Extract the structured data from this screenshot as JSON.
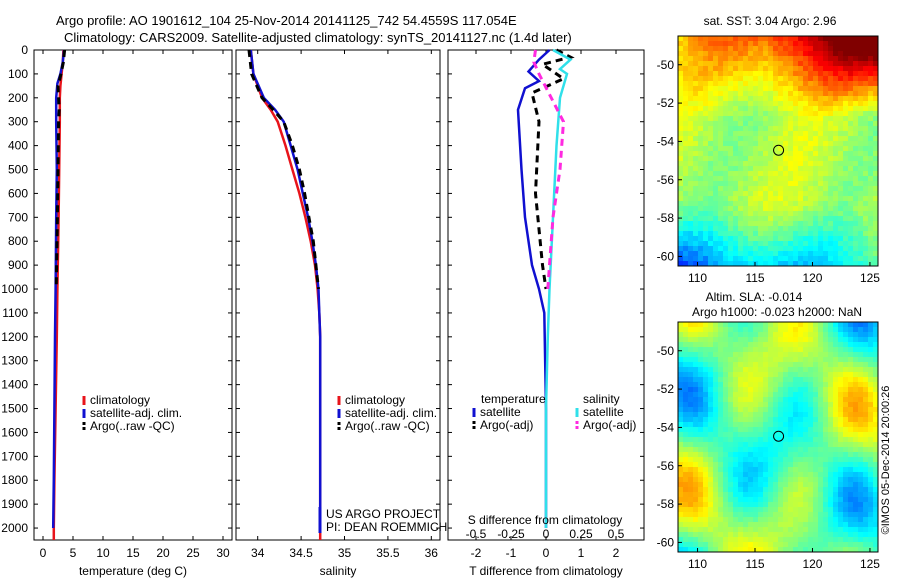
{
  "header": {
    "line1": "Argo profile: AO 1901612_104 25-Nov-2014 20141125_742 54.4559S 117.054E",
    "line2": "Climatology: CARS2009. Satellite-adjusted climatology: synTS_20141127.nc (1.4d later)"
  },
  "colors": {
    "climatology": "#e8141b",
    "satellite": "#1010d0",
    "argo": "#000000",
    "sat_salinity": "#30e0ea",
    "argo_salinity": "#ff2ae0"
  },
  "depth_axis": {
    "range": [
      0,
      2050
    ],
    "ticks": [
      0,
      100,
      200,
      300,
      400,
      500,
      600,
      700,
      800,
      900,
      1000,
      1100,
      1200,
      1300,
      1400,
      1500,
      1600,
      1700,
      1800,
      1900,
      2000
    ]
  },
  "chart_data": [
    {
      "type": "line",
      "id": "temperature",
      "xlabel": "temperature (deg C)",
      "xlim": [
        -1.5,
        31.5
      ],
      "xticks": [
        0,
        5,
        10,
        15,
        20,
        25,
        30
      ],
      "legend": [
        "climatology",
        "satellite-adj. clim.",
        "Argo(..raw -QC)"
      ],
      "legend_location": "lower-right",
      "series": [
        {
          "name": "climatology",
          "style": "solid",
          "points": [
            [
              3.4,
              0
            ],
            [
              3.3,
              50
            ],
            [
              3.1,
              100
            ],
            [
              2.9,
              150
            ],
            [
              2.8,
              200
            ],
            [
              2.8,
              300
            ],
            [
              2.7,
              500
            ],
            [
              2.6,
              700
            ],
            [
              2.4,
              1000
            ],
            [
              2.3,
              1200
            ],
            [
              2.1,
              1500
            ],
            [
              1.9,
              1800
            ],
            [
              1.8,
              2000
            ],
            [
              1.8,
              2050
            ]
          ]
        },
        {
          "name": "satellite-adj. clim.",
          "style": "solid",
          "points": [
            [
              3.5,
              0
            ],
            [
              3.3,
              50
            ],
            [
              2.9,
              100
            ],
            [
              2.4,
              140
            ],
            [
              2.2,
              200
            ],
            [
              2.2,
              250
            ],
            [
              2.2,
              300
            ],
            [
              2.3,
              500
            ],
            [
              2.2,
              700
            ],
            [
              2.1,
              1000
            ],
            [
              2.0,
              1200
            ],
            [
              1.9,
              1500
            ],
            [
              1.8,
              1800
            ],
            [
              1.7,
              2000
            ]
          ]
        },
        {
          "name": "Argo(..raw -QC)",
          "style": "dashed",
          "points": [
            [
              3.6,
              0
            ],
            [
              3.4,
              50
            ],
            [
              3.0,
              100
            ],
            [
              2.5,
              150
            ],
            [
              2.6,
              200
            ],
            [
              2.7,
              250
            ],
            [
              2.6,
              300
            ],
            [
              2.5,
              500
            ],
            [
              2.4,
              700
            ],
            [
              2.2,
              1000
            ]
          ]
        }
      ]
    },
    {
      "type": "line",
      "id": "salinity",
      "xlabel": "salinity",
      "xlim": [
        33.75,
        36.1
      ],
      "xticks": [
        34,
        34.5,
        35,
        35.5,
        36
      ],
      "xticklabels": [
        "34",
        "34.5",
        "35",
        "35.5",
        "36"
      ],
      "legend": [
        "climatology",
        "satellite-adj. clim.",
        "Argo(..raw -QC)"
      ],
      "legend_location": "lower-right",
      "annotation": [
        "US ARGO PROJECT",
        "PI: DEAN ROEMMICH"
      ],
      "series": [
        {
          "name": "climatology",
          "style": "solid",
          "points": [
            [
              33.92,
              0
            ],
            [
              33.95,
              100
            ],
            [
              34.05,
              200
            ],
            [
              34.15,
              250
            ],
            [
              34.23,
              300
            ],
            [
              34.32,
              400
            ],
            [
              34.4,
              500
            ],
            [
              34.48,
              600
            ],
            [
              34.55,
              700
            ],
            [
              34.61,
              800
            ],
            [
              34.66,
              900
            ],
            [
              34.69,
              1000
            ],
            [
              34.71,
              1100
            ],
            [
              34.72,
              1200
            ],
            [
              34.72,
              1500
            ],
            [
              34.72,
              1800
            ],
            [
              34.72,
              2050
            ]
          ]
        },
        {
          "name": "satellite-adj. clim.",
          "style": "solid",
          "points": [
            [
              33.92,
              0
            ],
            [
              33.95,
              100
            ],
            [
              34.07,
              200
            ],
            [
              34.2,
              250
            ],
            [
              34.3,
              300
            ],
            [
              34.38,
              400
            ],
            [
              34.46,
              500
            ],
            [
              34.52,
              600
            ],
            [
              34.58,
              700
            ],
            [
              34.63,
              800
            ],
            [
              34.67,
              900
            ],
            [
              34.7,
              1000
            ],
            [
              34.71,
              1100
            ],
            [
              34.72,
              1200
            ],
            [
              34.72,
              1500
            ],
            [
              34.72,
              1800
            ],
            [
              34.72,
              1950
            ]
          ]
        },
        {
          "name": "Argo(..raw -QC)",
          "style": "dashed",
          "points": [
            [
              33.9,
              0
            ],
            [
              33.93,
              100
            ],
            [
              34.05,
              200
            ],
            [
              34.18,
              250
            ],
            [
              34.3,
              300
            ],
            [
              34.4,
              400
            ],
            [
              34.48,
              500
            ],
            [
              34.54,
              600
            ],
            [
              34.59,
              700
            ],
            [
              34.64,
              800
            ],
            [
              34.67,
              900
            ],
            [
              34.7,
              1000
            ]
          ]
        }
      ]
    },
    {
      "type": "line",
      "id": "difference",
      "xlabel": "T difference from climatology",
      "x2label": "S difference from climatology",
      "xlim": [
        -2.8,
        2.8
      ],
      "xticks": [
        -2,
        -1,
        0,
        1,
        2
      ],
      "xticklabels": [
        "-2",
        "-1",
        "0",
        "1",
        "2"
      ],
      "x2ticks": [
        -2,
        -1,
        0,
        1,
        2
      ],
      "x2ticklabels": [
        "-0.5",
        "-0.25",
        "0",
        "0.25",
        "0.5"
      ],
      "legend_groups": [
        {
          "title": "temperature",
          "items": [
            "satellite",
            "Argo(-adj)"
          ]
        },
        {
          "title": "salinity",
          "items": [
            "satellite",
            "Argo(-adj)"
          ]
        }
      ],
      "series": [
        {
          "name": "temperature satellite",
          "style": "solid",
          "points": [
            [
              0.1,
              0
            ],
            [
              -0.2,
              40
            ],
            [
              -0.5,
              90
            ],
            [
              -0.2,
              130
            ],
            [
              -0.6,
              160
            ],
            [
              -0.8,
              250
            ],
            [
              -0.7,
              500
            ],
            [
              -0.6,
              700
            ],
            [
              -0.4,
              900
            ],
            [
              -0.2,
              1000
            ],
            [
              -0.05,
              1100
            ],
            [
              0,
              1500
            ],
            [
              0,
              2000
            ]
          ]
        },
        {
          "name": "temperature Argo(-adj)",
          "style": "dashed",
          "points": [
            [
              0.3,
              0
            ],
            [
              0.7,
              30
            ],
            [
              -0.1,
              60
            ],
            [
              0.5,
              120
            ],
            [
              -0.4,
              180
            ],
            [
              -0.2,
              300
            ],
            [
              -0.3,
              600
            ],
            [
              -0.1,
              900
            ],
            [
              0,
              1000
            ]
          ]
        },
        {
          "name": "salinity satellite",
          "style": "solid",
          "points": [
            [
              0.2,
              0
            ],
            [
              0.7,
              40
            ],
            [
              0.4,
              80
            ],
            [
              0.6,
              100
            ],
            [
              0.4,
              200
            ],
            [
              0.3,
              400
            ],
            [
              0.2,
              700
            ],
            [
              0.1,
              1000
            ],
            [
              0.05,
              1200
            ],
            [
              0,
              1500
            ],
            [
              0,
              2000
            ]
          ]
        },
        {
          "name": "salinity Argo(-adj)",
          "style": "dashed",
          "points": [
            [
              -0.3,
              0
            ],
            [
              -0.35,
              50
            ],
            [
              -0.2,
              100
            ],
            [
              0.5,
              300
            ],
            [
              0.4,
              500
            ],
            [
              0.2,
              700
            ],
            [
              0.1,
              900
            ],
            [
              0.05,
              1000
            ]
          ]
        }
      ]
    },
    {
      "type": "heatmap",
      "id": "sst-map",
      "title": "sat. SST: 3.04 Argo: 2.96",
      "xlim": [
        108.3,
        125.7
      ],
      "ylim": [
        -60.5,
        -48.5
      ],
      "xticks": [
        110,
        115,
        120,
        125
      ],
      "yticks": [
        -60,
        -58,
        -56,
        -54,
        -52,
        -50
      ],
      "marker": [
        117.05,
        -54.46
      ]
    },
    {
      "type": "heatmap",
      "id": "sla-map",
      "title": "Altim. SLA: -0.014",
      "subtitle": "Argo h1000: -0.023 h2000: NaN",
      "xlim": [
        108.3,
        125.7
      ],
      "ylim": [
        -60.5,
        -48.5
      ],
      "xticks": [
        110,
        115,
        120,
        125
      ],
      "yticks": [
        -60,
        -58,
        -56,
        -54,
        -52,
        -50
      ],
      "marker": [
        117.05,
        -54.46
      ]
    }
  ],
  "side_stamp": "©IMOS 05-Dec-2014 20:00:26"
}
